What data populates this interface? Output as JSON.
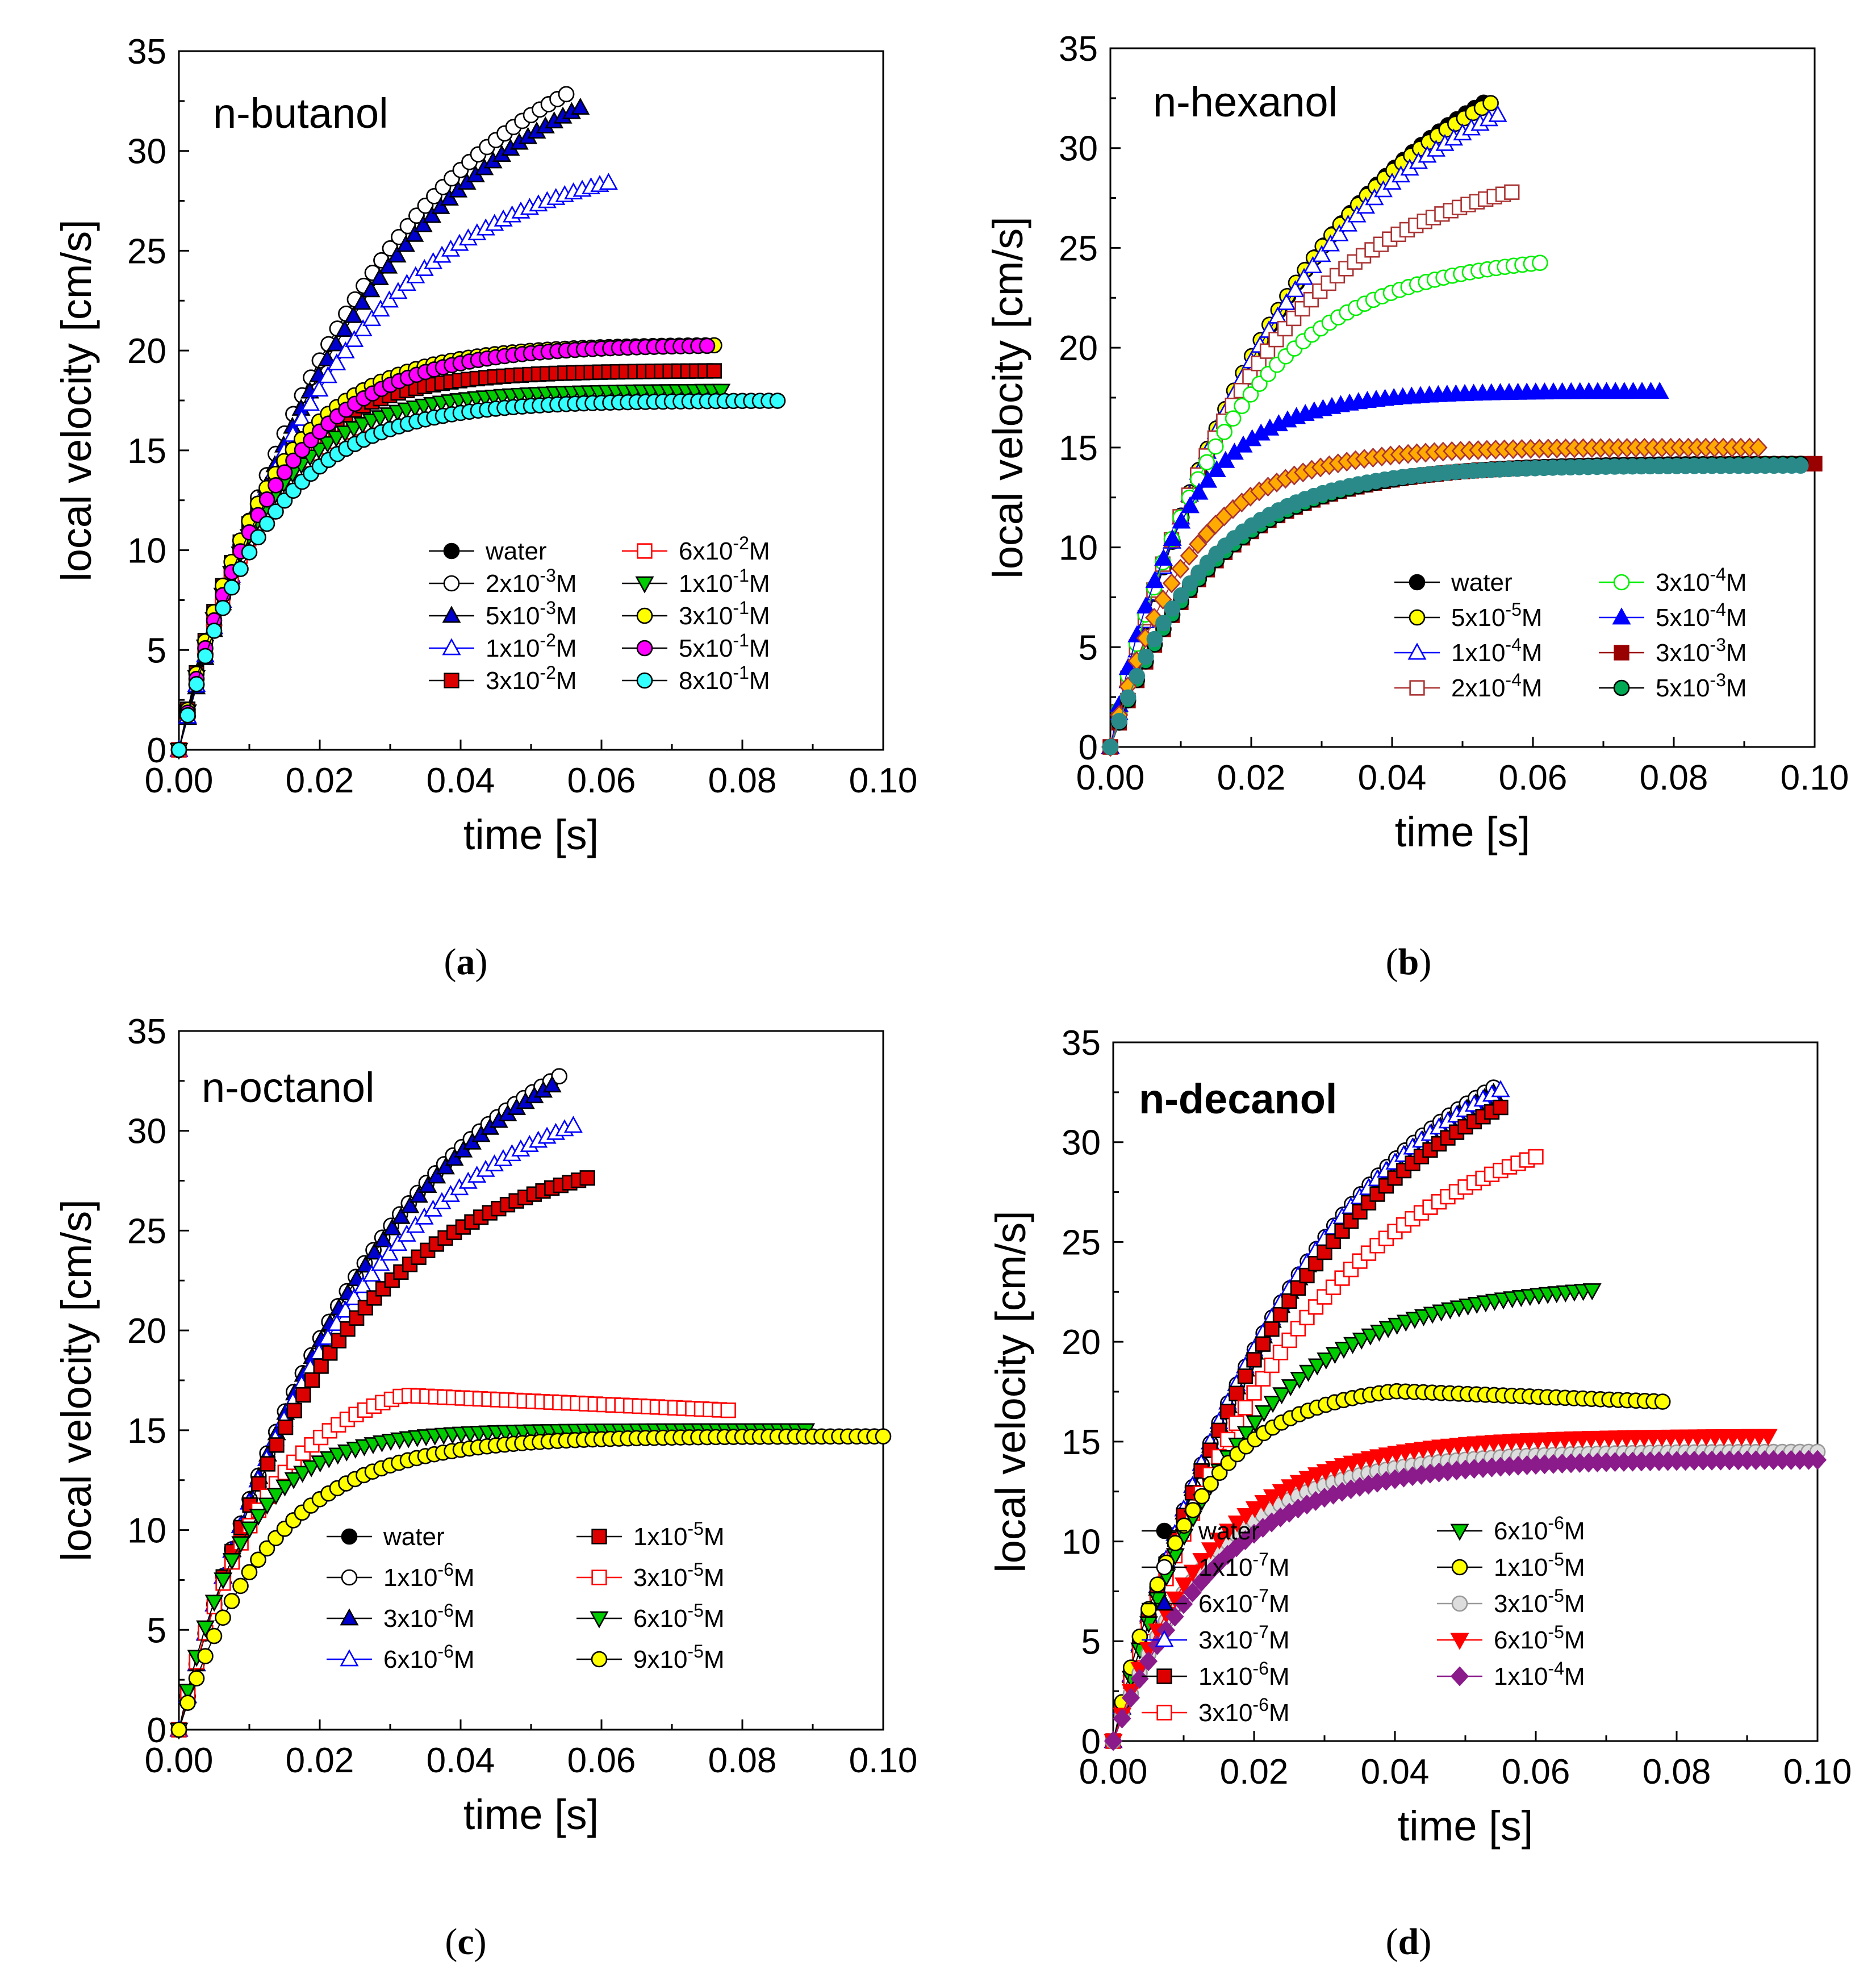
{
  "figure": {
    "captions": [
      "a",
      "b",
      "c",
      "d"
    ]
  },
  "chart_data": [
    {
      "type": "scatter",
      "panel": "a",
      "title": "n-butanol",
      "xlabel": "time [s]",
      "ylabel": "local velocity [cm/s]",
      "xlim": [
        0,
        0.1
      ],
      "ylim": [
        0,
        35
      ],
      "xticks": [
        "0.00",
        "0.02",
        "0.04",
        "0.06",
        "0.08",
        "0.10"
      ],
      "yticks": [
        "0",
        "5",
        "10",
        "15",
        "20",
        "25",
        "30",
        "35"
      ],
      "legend_position": "bottom-right",
      "series": [
        {
          "name": "water",
          "legend": [
            "water",
            ""
          ],
          "marker": "circle",
          "fill": "#000000",
          "stroke": "#000000",
          "tau": 0.028,
          "vmax": 38.2,
          "tmax": 0.055
        },
        {
          "name": "2x10-3M",
          "legend": [
            "2x10",
            "-3",
            "M"
          ],
          "marker": "circle",
          "fill": "#ffffff",
          "stroke": "#000000",
          "tau": 0.028,
          "vmax": 38.2,
          "tmax": 0.055
        },
        {
          "name": "5x10-3M",
          "legend": [
            "5x10",
            "-3",
            "M"
          ],
          "marker": "triangle-up",
          "fill": "#0000cc",
          "stroke": "#000000",
          "tau": 0.028,
          "vmax": 37.0,
          "tmax": 0.057
        },
        {
          "name": "1x10-2M",
          "legend": [
            "1x10",
            "-2",
            "M"
          ],
          "marker": "triangle-up",
          "fill": "#ffffff",
          "stroke": "#0000ff",
          "tau": 0.022,
          "vmax": 30.3,
          "tmax": 0.061
        },
        {
          "name": "3x10-2M",
          "legend": [
            "3x10",
            "-2",
            "M"
          ],
          "marker": "square",
          "fill": "#dd0000",
          "stroke": "#000000",
          "tau": 0.011,
          "vmax": 19.0,
          "tmax": 0.076
        },
        {
          "name": "6x10-2M",
          "legend": [
            "6x10",
            "-2",
            "M"
          ],
          "marker": "square",
          "fill": "#ffffff",
          "stroke": "#ff0000",
          "tau": 0.011,
          "vmax": 17.8,
          "tmax": 0.057
        },
        {
          "name": "1x10-1M",
          "legend": [
            "1x10",
            "-1",
            "M"
          ],
          "marker": "triangle-down",
          "fill": "#00cc00",
          "stroke": "#000000",
          "tau": 0.011,
          "vmax": 18.0,
          "tmax": 0.077
        },
        {
          "name": "3x10-1M",
          "legend": [
            "3x10",
            "-1",
            "M"
          ],
          "marker": "circle",
          "fill": "#ffff00",
          "stroke": "#000000",
          "tau": 0.012,
          "vmax": 20.3,
          "tmax": 0.076
        },
        {
          "name": "5x10-1M",
          "legend": [
            "5x10",
            "-1",
            "M"
          ],
          "marker": "circle",
          "fill": "#ff00ff",
          "stroke": "#000000",
          "tau": 0.013,
          "vmax": 20.3,
          "tmax": 0.075
        },
        {
          "name": "8x10-1M",
          "legend": [
            "8x10",
            "-1",
            "M"
          ],
          "marker": "circle",
          "fill": "#33ffff",
          "stroke": "#000000",
          "tau": 0.012,
          "vmax": 17.5,
          "tmax": 0.085
        }
      ]
    },
    {
      "type": "scatter",
      "panel": "b",
      "title": "n-hexanol",
      "xlabel": "time [s]",
      "ylabel": "local velocity [cm/s]",
      "xlim": [
        0,
        0.1
      ],
      "ylim": [
        0,
        35
      ],
      "xticks": [
        "0.00",
        "0.02",
        "0.04",
        "0.06",
        "0.08",
        "0.10"
      ],
      "yticks": [
        "0",
        "5",
        "10",
        "15",
        "20",
        "25",
        "30",
        "35"
      ],
      "legend_position": "bottom-right",
      "series": [
        {
          "name": "water",
          "legend": [
            "water",
            ""
          ],
          "marker": "circle",
          "fill": "#000000",
          "stroke": "#000000",
          "tau": 0.028,
          "vmax": 38.0,
          "tmax": 0.053
        },
        {
          "name": "5x10-5M",
          "legend": [
            "5x10",
            "-5",
            "M"
          ],
          "marker": "circle",
          "fill": "#ffff00",
          "stroke": "#000000",
          "tau": 0.027,
          "vmax": 37.3,
          "tmax": 0.054
        },
        {
          "name": "1x10-4M",
          "legend": [
            "1x10",
            "-4",
            "M"
          ],
          "marker": "triangle-up",
          "fill": "#ffffff",
          "stroke": "#0000ff",
          "tau": 0.026,
          "vmax": 36.0,
          "tmax": 0.055
        },
        {
          "name": "2x10-4M",
          "legend": [
            "2x10",
            "-4",
            "M"
          ],
          "marker": "square",
          "fill": "#ffffff",
          "stroke": "#aa3333",
          "tau": 0.02,
          "vmax": 29.5,
          "tmax": 0.057
        },
        {
          "name": "3x10-4M",
          "legend": [
            "3x10",
            "-4",
            "M"
          ],
          "marker": "circle",
          "fill": "#ffffff",
          "stroke": "#00ee00",
          "tau": 0.016,
          "vmax": 24.8,
          "tmax": 0.061
        },
        {
          "name": "5x10-4M",
          "legend": [
            "5x10",
            "-4",
            "M"
          ],
          "marker": "triangle-up",
          "fill": "#0000ff",
          "stroke": "#0000ff",
          "tau": 0.01,
          "vmax": 17.8,
          "tmax": 0.078
        },
        {
          "name": "3x10-3M",
          "legend": [
            "3x10",
            "-3",
            "M"
          ],
          "marker": "square",
          "fill": "#990000",
          "stroke": "#990000",
          "tau": 0.014,
          "vmax": 14.2,
          "tmax": 0.1
        },
        {
          "name": "5x10-3M",
          "legend": [
            "5x10",
            "-3",
            "M"
          ],
          "marker": "circle",
          "fill": "#00aa55",
          "stroke": "#000000",
          "tau": 0.014,
          "vmax": 14.2,
          "tmax": 0.098
        },
        {
          "name": "extra-orange",
          "legend": null,
          "marker": "diamond",
          "fill": "#ffaa00",
          "stroke": "#aa3333",
          "tau": 0.011,
          "vmax": 15.0,
          "tmax": 0.092
        },
        {
          "name": "extra-teal",
          "legend": null,
          "marker": "circle",
          "fill": "#2a8a8a",
          "stroke": "#2a8a8a",
          "tau": 0.013,
          "vmax": 14.1,
          "tmax": 0.098
        }
      ]
    },
    {
      "type": "scatter",
      "panel": "c",
      "title": "n-octanol",
      "xlabel": "time [s]",
      "ylabel": "local velocity [cm/s]",
      "xlim": [
        0,
        0.1
      ],
      "ylim": [
        0,
        35
      ],
      "xticks": [
        "0.00",
        "0.02",
        "0.04",
        "0.06",
        "0.08",
        "0.10"
      ],
      "yticks": [
        "0",
        "5",
        "10",
        "15",
        "20",
        "25",
        "30",
        "35"
      ],
      "legend_position": "bottom-right",
      "series": [
        {
          "name": "water",
          "legend": [
            "water",
            ""
          ],
          "marker": "circle",
          "fill": "#000000",
          "stroke": "#000000",
          "tau": 0.028,
          "vmax": 38.3,
          "tmax": 0.054
        },
        {
          "name": "1x10-6M",
          "legend": [
            "1x10",
            "-6",
            "M"
          ],
          "marker": "circle",
          "fill": "#ffffff",
          "stroke": "#000000",
          "tau": 0.028,
          "vmax": 38.3,
          "tmax": 0.054
        },
        {
          "name": "3x10-6M",
          "legend": [
            "3x10",
            "-6",
            "M"
          ],
          "marker": "triangle-up",
          "fill": "#0000cc",
          "stroke": "#000000",
          "tau": 0.028,
          "vmax": 38.0,
          "tmax": 0.053
        },
        {
          "name": "6x10-6M",
          "legend": [
            "6x10",
            "-6",
            "M"
          ],
          "marker": "triangle-up",
          "fill": "#ffffff",
          "stroke": "#0000ff",
          "tau": 0.024,
          "vmax": 33.5,
          "tmax": 0.056
        },
        {
          "name": "1x10-5M",
          "legend": [
            "1x10",
            "-5",
            "M"
          ],
          "marker": "square",
          "fill": "#dd0000",
          "stroke": "#000000",
          "tau": 0.021,
          "vmax": 29.5,
          "tmax": 0.058
        },
        {
          "name": "3x10-5M",
          "legend": [
            "3x10",
            "-5",
            "M"
          ],
          "marker": "square",
          "fill": "#ffffff",
          "stroke": "#ff0000",
          "tau": 0.012,
          "vmax": 18.0,
          "tmax": 0.078,
          "peak": 0.032,
          "vend": 16.0
        },
        {
          "name": "6x10-5M",
          "legend": [
            "6x10",
            "-5",
            "M"
          ],
          "marker": "triangle-down",
          "fill": "#00cc00",
          "stroke": "#000000",
          "tau": 0.009,
          "vmax": 15.0,
          "tmax": 0.089
        },
        {
          "name": "9x10-5M",
          "legend": [
            "9x10",
            "-5",
            "M"
          ],
          "marker": "circle",
          "fill": "#ffff00",
          "stroke": "#000000",
          "tau": 0.013,
          "vmax": 14.7,
          "tmax": 0.1
        }
      ]
    },
    {
      "type": "scatter",
      "panel": "d",
      "title": "n-decanol",
      "xlabel": "time [s]",
      "ylabel": "local velocity [cm/s]",
      "xlim": [
        0,
        0.1
      ],
      "ylim": [
        0,
        35
      ],
      "xticks": [
        "0.00",
        "0.02",
        "0.04",
        "0.06",
        "0.08",
        "0.10"
      ],
      "yticks": [
        "0",
        "5",
        "10",
        "15",
        "20",
        "25",
        "30",
        "35"
      ],
      "legend_position": "bottom-left",
      "series": [
        {
          "name": "water",
          "legend": [
            "water",
            ""
          ],
          "marker": "circle",
          "fill": "#000000",
          "stroke": "#000000",
          "tau": 0.028,
          "vmax": 38.3,
          "tmax": 0.054
        },
        {
          "name": "1x10-7M",
          "legend": [
            "1x10",
            "-7",
            "M"
          ],
          "marker": "circle",
          "fill": "#ffffff",
          "stroke": "#000000",
          "tau": 0.028,
          "vmax": 38.3,
          "tmax": 0.054
        },
        {
          "name": "6x10-7M",
          "legend": [
            "6x10",
            "-7",
            "M"
          ],
          "marker": "triangle-up",
          "fill": "#0000cc",
          "stroke": "#000000",
          "tau": 0.028,
          "vmax": 38.0,
          "tmax": 0.054
        },
        {
          "name": "3x10-7M",
          "legend": [
            "3x10",
            "-7",
            "M"
          ],
          "marker": "triangle-up",
          "fill": "#ffffff",
          "stroke": "#0000ff",
          "tau": 0.027,
          "vmax": 37.5,
          "tmax": 0.055
        },
        {
          "name": "1x10-6M",
          "legend": [
            "1x10",
            "-6",
            "M"
          ],
          "marker": "square",
          "fill": "#dd0000",
          "stroke": "#000000",
          "tau": 0.027,
          "vmax": 36.5,
          "tmax": 0.055
        },
        {
          "name": "3x10-6M",
          "legend": [
            "3x10",
            "-6",
            "M"
          ],
          "marker": "square",
          "fill": "#ffffff",
          "stroke": "#ff0000",
          "tau": 0.026,
          "vmax": 32.5,
          "tmax": 0.06
        },
        {
          "name": "6x10-6M",
          "legend": [
            "6x10",
            "-6",
            "M"
          ],
          "marker": "triangle-down",
          "fill": "#00cc00",
          "stroke": "#000000",
          "tau": 0.017,
          "vmax": 23.0,
          "tmax": 0.068
        },
        {
          "name": "1x10-5M",
          "legend": [
            "1x10",
            "-5",
            "M"
          ],
          "marker": "circle",
          "fill": "#ffff00",
          "stroke": "#000000",
          "tau": 0.011,
          "vmax": 18.0,
          "tmax": 0.078,
          "peak": 0.04,
          "vend": 17.0
        },
        {
          "name": "3x10-5M",
          "legend": [
            "3x10",
            "-5",
            "M"
          ],
          "marker": "circle",
          "fill": "#dddddd",
          "stroke": "#999999",
          "tau": 0.014,
          "vmax": 14.5,
          "tmax": 0.1
        },
        {
          "name": "6x10-5M",
          "legend": [
            "6x10",
            "-5",
            "M"
          ],
          "marker": "triangle-down",
          "fill": "#ff0000",
          "stroke": "#ff0000",
          "tau": 0.014,
          "vmax": 15.3,
          "tmax": 0.093
        },
        {
          "name": "1x10-4M",
          "legend": [
            "1x10",
            "-4",
            "M"
          ],
          "marker": "diamond",
          "fill": "#8b1a8b",
          "stroke": "#8b1a8b",
          "tau": 0.015,
          "vmax": 14.1,
          "tmax": 0.1
        }
      ]
    }
  ]
}
